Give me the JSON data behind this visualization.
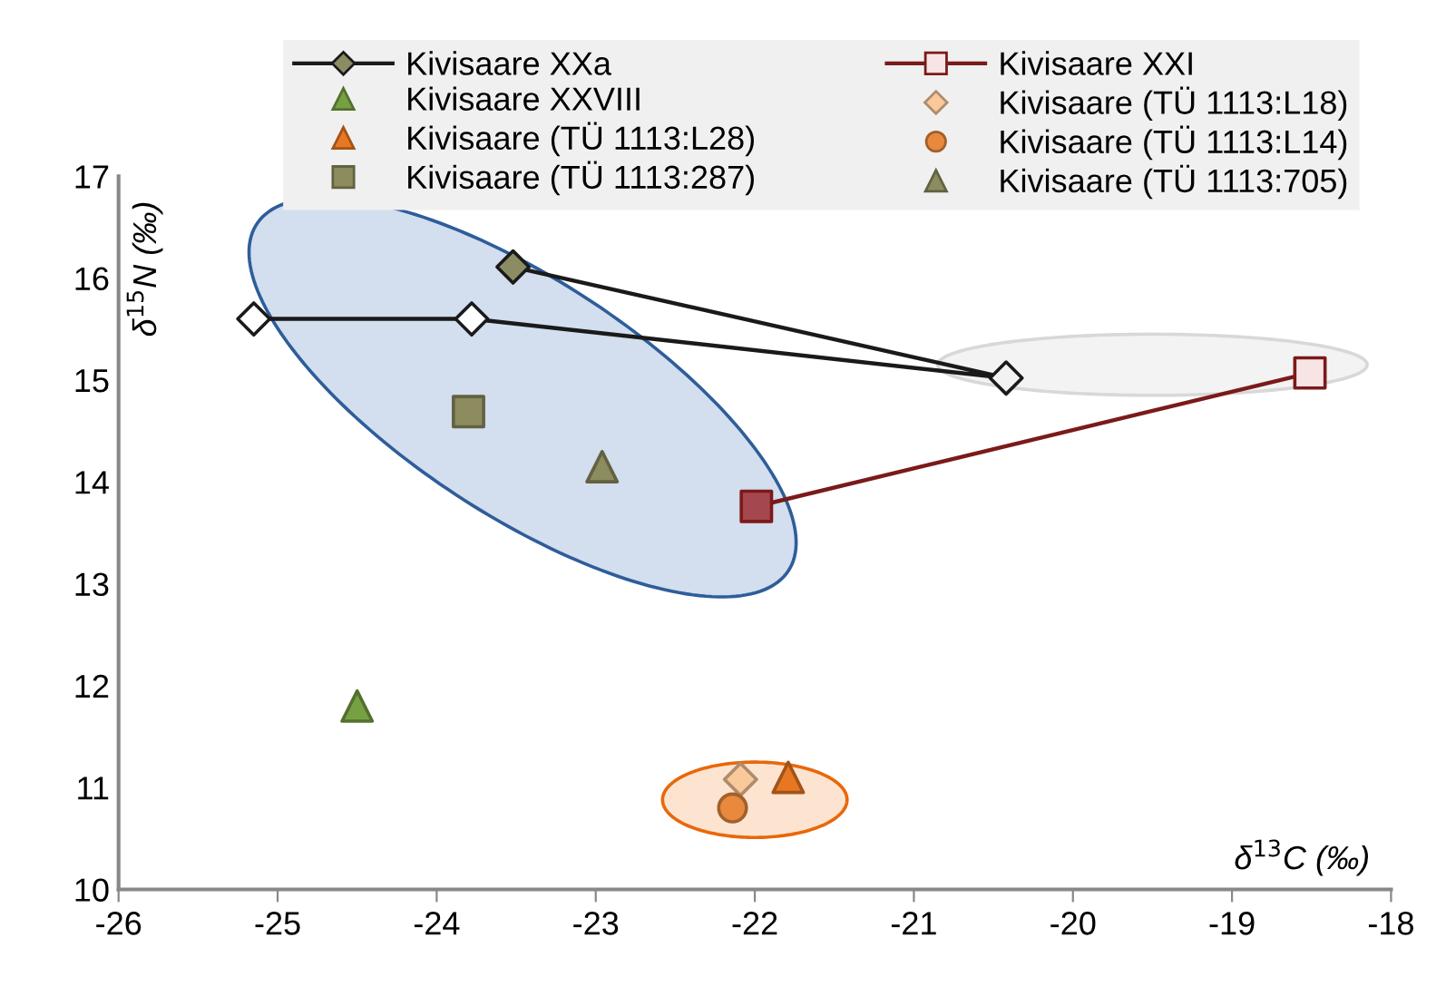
{
  "chart_data": {
    "type": "scatter",
    "xlabel": "δ$^{13}$C (‰)",
    "ylabel": "δ$^{15}$N (‰)",
    "xlim": [
      -26,
      -18
    ],
    "xticks": [
      -26,
      -25,
      -24,
      -23,
      -22,
      -21,
      -20,
      -19,
      -18
    ],
    "ylim": [
      10,
      17
    ],
    "yticks": [
      10,
      11,
      12,
      13,
      14,
      15,
      16,
      17
    ],
    "grid": false,
    "legend": "top",
    "series": [
      {
        "name": "Kivisaare XXa",
        "type": "line",
        "marker": "diamond",
        "color": "#1a1a1a",
        "x": [
          -25.15,
          -23.78,
          -20.42,
          -23.52
        ],
        "values": [
          15.6,
          15.6,
          15.02,
          16.11
        ],
        "colors": [
          "#ffffff",
          "#ffffff",
          "#f2f2f2",
          "#8c8c64"
        ]
      },
      {
        "name": "Kivisaare XXI",
        "type": "line",
        "marker": "square",
        "color": "#7b1a1a",
        "x": [
          -21.99,
          -18.51
        ],
        "values": [
          13.76,
          15.07
        ],
        "colors": [
          "#a5474e",
          "#f7e4e5"
        ]
      },
      {
        "name": "Kivisaare XXVIII",
        "marker": "triangle",
        "color": "#77a043",
        "x": [
          -24.5
        ],
        "values": [
          11.8
        ]
      },
      {
        "name": "Kivisaare (TÜ 1113:L18)",
        "marker": "diamond",
        "color": "#f9c89b",
        "x": [
          -22.09
        ],
        "values": [
          11.08
        ]
      },
      {
        "name": "Kivisaare (TÜ 1113:L28)",
        "marker": "triangle",
        "color": "#e87722",
        "x": [
          -21.79
        ],
        "values": [
          11.1
        ]
      },
      {
        "name": "Kivisaare (TÜ 1113:L14)",
        "marker": "circle",
        "color": "#e8893e",
        "x": [
          -22.14
        ],
        "values": [
          10.8
        ]
      },
      {
        "name": "Kivisaare (TÜ 1113:287)",
        "marker": "square",
        "color": "#8c8c5e",
        "x": [
          -23.8
        ],
        "values": [
          14.69
        ]
      },
      {
        "name": "Kivisaare (TÜ 1113:705)",
        "marker": "triangle",
        "color": "#8c8c5e",
        "x": [
          -22.96
        ],
        "values": [
          14.15
        ]
      }
    ]
  }
}
